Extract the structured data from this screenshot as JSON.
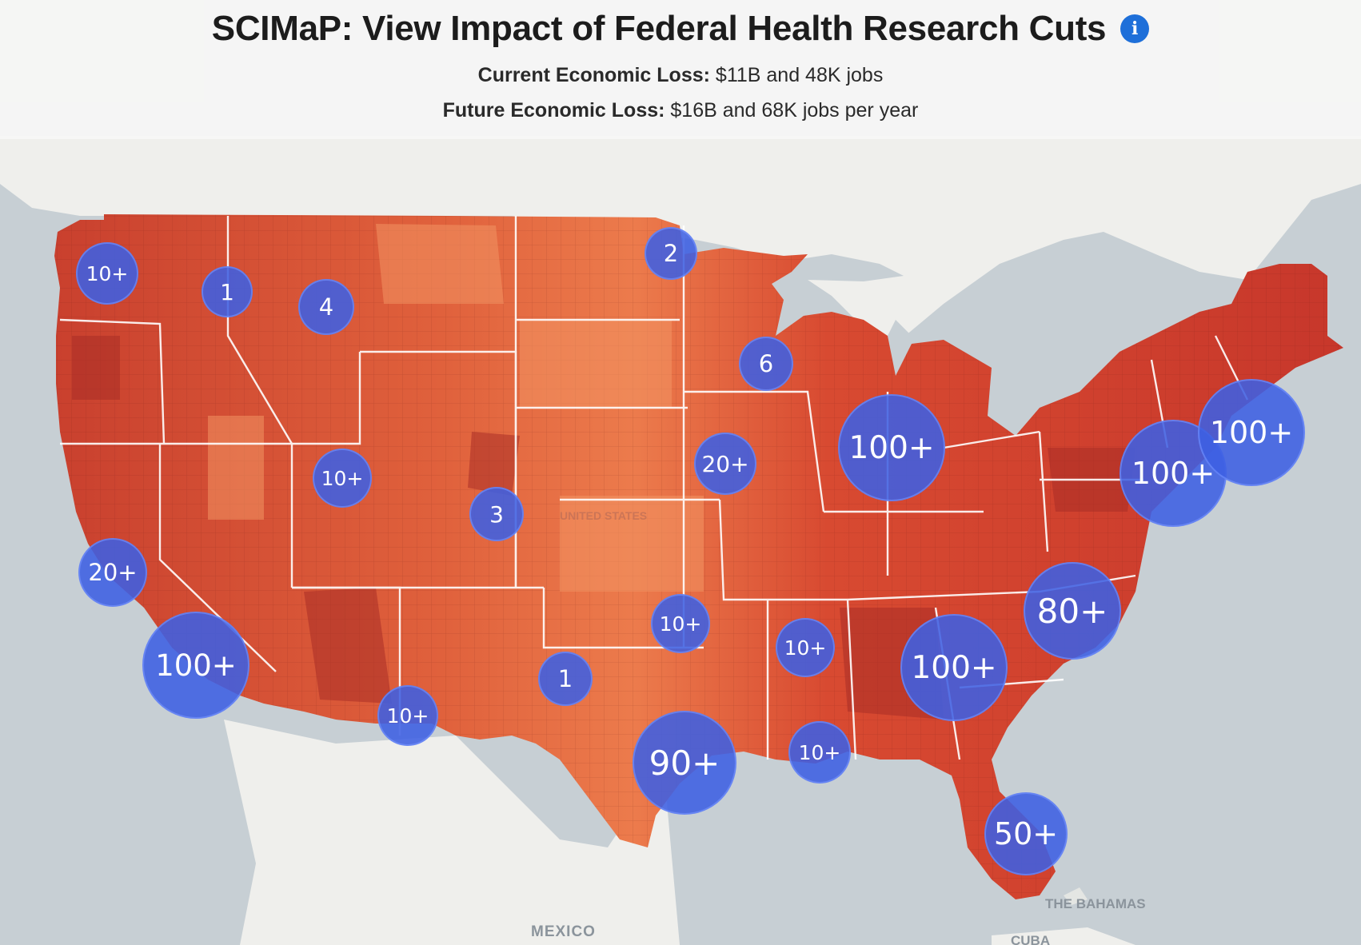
{
  "header": {
    "title": "SCIMaP: View Impact of Federal Health Research Cuts",
    "info_icon": "i",
    "current_label": "Current Economic Loss:",
    "current_value": " $11B and 48K jobs",
    "future_label": "Future Economic Loss:",
    "future_value": " $16B and 68K jobs per year"
  },
  "map": {
    "labels": {
      "mexico": "MEXICO",
      "bahamas": "THE BAHAMAS",
      "cuba": "CUBA",
      "united_states": "UNITED STATES"
    },
    "colors": {
      "water": "#c7cfd4",
      "land": "#efefec",
      "choropleth_dark": "#b3322b",
      "choropleth_mid": "#dc4c33",
      "choropleth_light": "#ef8454",
      "cluster": "#3e60e2"
    },
    "clusters": [
      {
        "label": "10+"
      },
      {
        "label": "1"
      },
      {
        "label": "4"
      },
      {
        "label": "2"
      },
      {
        "label": "6"
      },
      {
        "label": "100+"
      },
      {
        "label": "100+"
      },
      {
        "label": "100+"
      },
      {
        "label": "20+"
      },
      {
        "label": "10+"
      },
      {
        "label": "3"
      },
      {
        "label": "20+"
      },
      {
        "label": "100+"
      },
      {
        "label": "80+"
      },
      {
        "label": "10+"
      },
      {
        "label": "10+"
      },
      {
        "label": "100+"
      },
      {
        "label": "1"
      },
      {
        "label": "10+"
      },
      {
        "label": "90+"
      },
      {
        "label": "10+"
      },
      {
        "label": "50+"
      }
    ]
  }
}
